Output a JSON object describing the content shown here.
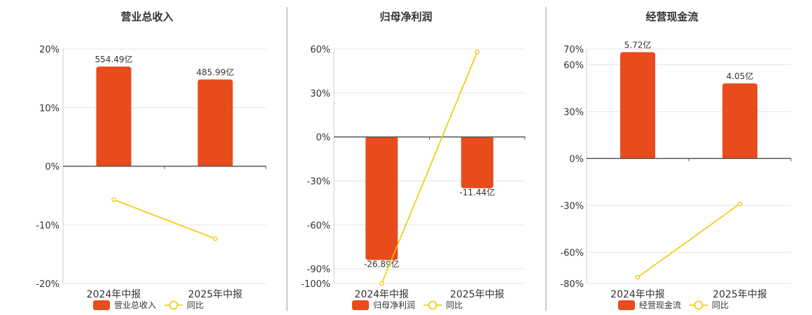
{
  "colors": {
    "bar": "#e84b1c",
    "line": "#f2c800",
    "grid": "#e6e6e6",
    "axis": "#333333",
    "text": "#333333",
    "divider": "#999999"
  },
  "chart_data": [
    {
      "type": "bar",
      "title": "营业总收入",
      "categories": [
        "2024年中报",
        "2025年中报"
      ],
      "series": [
        {
          "name": "营业总收入",
          "type": "bar",
          "values": [
            17.0,
            14.8
          ],
          "labels": [
            "554.49亿",
            "485.99亿"
          ]
        },
        {
          "name": "同比",
          "type": "line",
          "values": [
            -5.7,
            -12.35
          ]
        }
      ],
      "yticks": [
        "20%",
        "10%",
        "0%",
        "-10%",
        "-20%"
      ],
      "ytick_values": [
        20,
        10,
        0,
        -10,
        -20
      ],
      "ylim": [
        -20,
        20
      ],
      "grid": true,
      "legend": "bottom"
    },
    {
      "type": "bar",
      "title": "归母净利润",
      "categories": [
        "2024年中报",
        "2025年中报"
      ],
      "series": [
        {
          "name": "归母净利润",
          "type": "bar",
          "values": [
            -84.0,
            -35.0
          ],
          "labels": [
            "-26.89亿",
            "-11.44亿"
          ]
        },
        {
          "name": "同比",
          "type": "line",
          "values": [
            -100.0,
            58.0
          ]
        }
      ],
      "yticks": [
        "60%",
        "30%",
        "0%",
        "-30%",
        "-60%",
        "-90%",
        "-100%"
      ],
      "ytick_values": [
        60,
        30,
        0,
        -30,
        -60,
        -90,
        -100
      ],
      "ylim": [
        -100,
        60
      ],
      "grid": true,
      "legend": "bottom"
    },
    {
      "type": "bar",
      "title": "经营现金流",
      "categories": [
        "2024年中报",
        "2025年中报"
      ],
      "series": [
        {
          "name": "经营现金流",
          "type": "bar",
          "values": [
            68.0,
            48.0
          ],
          "labels": [
            "5.72亿",
            "4.05亿"
          ]
        },
        {
          "name": "同比",
          "type": "line",
          "values": [
            -76.0,
            -29.0
          ]
        }
      ],
      "yticks": [
        "70%",
        "60%",
        "30%",
        "0%",
        "-30%",
        "-60%",
        "-80%"
      ],
      "ytick_values": [
        70,
        60,
        30,
        0,
        -30,
        -60,
        -80
      ],
      "ylim": [
        -80,
        70
      ],
      "grid": true,
      "legend": "bottom"
    }
  ]
}
